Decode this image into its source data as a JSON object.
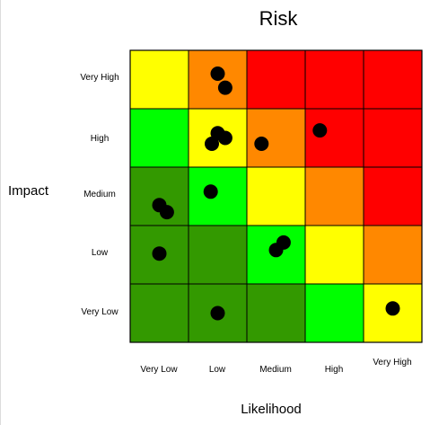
{
  "chart_data": {
    "type": "heatmap",
    "title": "Risk",
    "xlabel": "Likelihood",
    "ylabel": "Impact",
    "x_categories": [
      "Very Low",
      "Low",
      "Medium",
      "High",
      "Very High"
    ],
    "y_categories": [
      "Very High",
      "High",
      "Medium",
      "Low",
      "Very Low"
    ],
    "colors": {
      "dark_green": "#339900",
      "green": "#00ff00",
      "yellow": "#ffff00",
      "orange": "#ff8800",
      "red": "#ff0000",
      "grid": "#000000",
      "point": "#000000"
    },
    "cells": [
      [
        "yellow",
        "orange",
        "red",
        "red",
        "red"
      ],
      [
        "green",
        "yellow",
        "orange",
        "red",
        "red"
      ],
      [
        "dark_green",
        "green",
        "yellow",
        "orange",
        "red"
      ],
      [
        "dark_green",
        "dark_green",
        "green",
        "yellow",
        "orange"
      ],
      [
        "dark_green",
        "dark_green",
        "dark_green",
        "green",
        "yellow"
      ]
    ],
    "points": [
      {
        "likelihood": 1.5,
        "impact": 4.6
      },
      {
        "likelihood": 1.63,
        "impact": 4.36
      },
      {
        "likelihood": 1.5,
        "impact": 3.58
      },
      {
        "likelihood": 1.63,
        "impact": 3.5
      },
      {
        "likelihood": 1.4,
        "impact": 3.4
      },
      {
        "likelihood": 2.25,
        "impact": 3.4
      },
      {
        "likelihood": 3.25,
        "impact": 3.63
      },
      {
        "likelihood": 1.38,
        "impact": 2.58
      },
      {
        "likelihood": 0.5,
        "impact": 2.35
      },
      {
        "likelihood": 0.63,
        "impact": 2.23
      },
      {
        "likelihood": 2.63,
        "impact": 1.71
      },
      {
        "likelihood": 2.5,
        "impact": 1.58
      },
      {
        "likelihood": 0.5,
        "impact": 1.52
      },
      {
        "likelihood": 1.5,
        "impact": 0.5
      },
      {
        "likelihood": 4.5,
        "impact": 0.58
      }
    ],
    "grid": true
  }
}
